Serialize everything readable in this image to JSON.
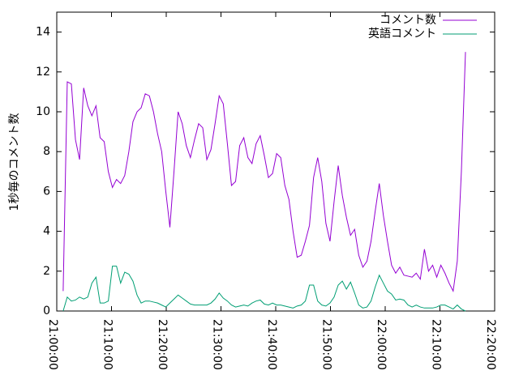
{
  "chart_data": {
    "type": "line",
    "ylabel": "1秒毎のコメント数",
    "x": [
      "21:01:10",
      "21:01:55",
      "21:02:40",
      "21:03:25",
      "21:04:10",
      "21:04:55",
      "21:05:40",
      "21:06:25",
      "21:07:10",
      "21:07:55",
      "21:08:40",
      "21:09:25",
      "21:10:10",
      "21:10:55",
      "21:11:40",
      "21:12:25",
      "21:13:10",
      "21:13:55",
      "21:14:40",
      "21:15:25",
      "21:16:10",
      "21:16:55",
      "21:17:40",
      "21:18:25",
      "21:19:10",
      "21:19:55",
      "21:20:40",
      "21:21:25",
      "21:22:10",
      "21:22:55",
      "21:23:40",
      "21:24:25",
      "21:25:10",
      "21:25:55",
      "21:26:40",
      "21:27:25",
      "21:28:10",
      "21:28:55",
      "21:29:40",
      "21:30:25",
      "21:31:10",
      "21:31:55",
      "21:32:40",
      "21:33:25",
      "21:34:10",
      "21:34:55",
      "21:35:40",
      "21:36:25",
      "21:37:10",
      "21:37:55",
      "21:38:40",
      "21:39:25",
      "21:40:10",
      "21:40:55",
      "21:41:40",
      "21:42:25",
      "21:43:10",
      "21:43:55",
      "21:44:40",
      "21:45:25",
      "21:46:10",
      "21:46:55",
      "21:47:40",
      "21:48:25",
      "21:49:10",
      "21:49:55",
      "21:50:40",
      "21:51:25",
      "21:52:10",
      "21:52:55",
      "21:53:40",
      "21:54:25",
      "21:55:10",
      "21:55:55",
      "21:56:40",
      "21:57:25",
      "21:58:10",
      "21:58:55",
      "21:59:40",
      "22:00:25",
      "22:01:10",
      "22:01:55",
      "22:02:40",
      "22:03:25",
      "22:04:10",
      "22:04:55",
      "22:05:40",
      "22:06:25",
      "22:07:10",
      "22:07:55",
      "22:08:40",
      "22:09:25",
      "22:10:10",
      "22:10:55",
      "22:11:40",
      "22:12:25",
      "22:13:10",
      "22:13:55",
      "22:14:40"
    ],
    "series": [
      {
        "name": "コメント数",
        "color": "#9400d3",
        "values": [
          1.0,
          11.5,
          11.4,
          8.6,
          7.6,
          11.2,
          10.3,
          9.8,
          10.3,
          8.7,
          8.5,
          7,
          6.2,
          6.6,
          6.4,
          6.8,
          8,
          9.5,
          10,
          10.2,
          10.9,
          10.8,
          10,
          8.9,
          8,
          6,
          4.2,
          7,
          10,
          9.4,
          8.3,
          7.7,
          8.6,
          9.4,
          9.2,
          7.6,
          8.1,
          9.4,
          10.8,
          10.4,
          8.4,
          6.3,
          6.5,
          8.3,
          8.7,
          7.7,
          7.4,
          8.4,
          8.8,
          7.8,
          6.7,
          6.9,
          7.9,
          7.7,
          6.3,
          5.6,
          4,
          2.7,
          2.8,
          3.5,
          4.3,
          6.7,
          7.7,
          6.5,
          4.4,
          3.5,
          5.5,
          7.3,
          5.8,
          4.7,
          3.8,
          4.1,
          2.8,
          2.2,
          2.5,
          3.5,
          5,
          6.4,
          4.8,
          3.5,
          2.3,
          1.9,
          2.2,
          1.8,
          1.75,
          1.7,
          1.9,
          1.6,
          3.1,
          2,
          2.3,
          1.7,
          2.3,
          1.9,
          1.4,
          1.0,
          2.5,
          7,
          13
        ]
      },
      {
        "name": "英語コメント",
        "color": "#009e73",
        "values": [
          0,
          0.7,
          0.5,
          0.55,
          0.7,
          0.6,
          0.7,
          1.4,
          1.7,
          0.4,
          0.4,
          0.5,
          2.25,
          2.25,
          1.4,
          1.95,
          1.85,
          1.5,
          0.8,
          0.4,
          0.5,
          0.5,
          0.45,
          0.4,
          0.3,
          0.2,
          0.4,
          0.6,
          0.8,
          0.65,
          0.5,
          0.35,
          0.3,
          0.3,
          0.3,
          0.3,
          0.4,
          0.6,
          0.9,
          0.65,
          0.5,
          0.3,
          0.2,
          0.25,
          0.3,
          0.25,
          0.4,
          0.5,
          0.55,
          0.35,
          0.3,
          0.4,
          0.3,
          0.3,
          0.25,
          0.2,
          0.15,
          0.25,
          0.3,
          0.5,
          1.3,
          1.3,
          0.5,
          0.3,
          0.25,
          0.4,
          0.7,
          1.3,
          1.5,
          1.1,
          1.45,
          0.9,
          0.3,
          0.15,
          0.2,
          0.5,
          1.2,
          1.8,
          1.4,
          1.0,
          0.85,
          0.55,
          0.6,
          0.55,
          0.3,
          0.2,
          0.3,
          0.2,
          0.15,
          0.15,
          0.15,
          0.2,
          0.3,
          0.3,
          0.2,
          0.1,
          0.3,
          0.1,
          0
        ]
      }
    ],
    "xlim": [
      "21:00:00",
      "22:20:00"
    ],
    "xticks": [
      "21:00:00",
      "21:10:00",
      "21:20:00",
      "21:30:00",
      "21:40:00",
      "21:50:00",
      "22:00:00",
      "22:10:00",
      "22:20:00"
    ],
    "ylim": [
      0,
      15
    ],
    "yticks": [
      0,
      2,
      4,
      6,
      8,
      10,
      12,
      14
    ],
    "grid": false,
    "legend": "top right"
  }
}
